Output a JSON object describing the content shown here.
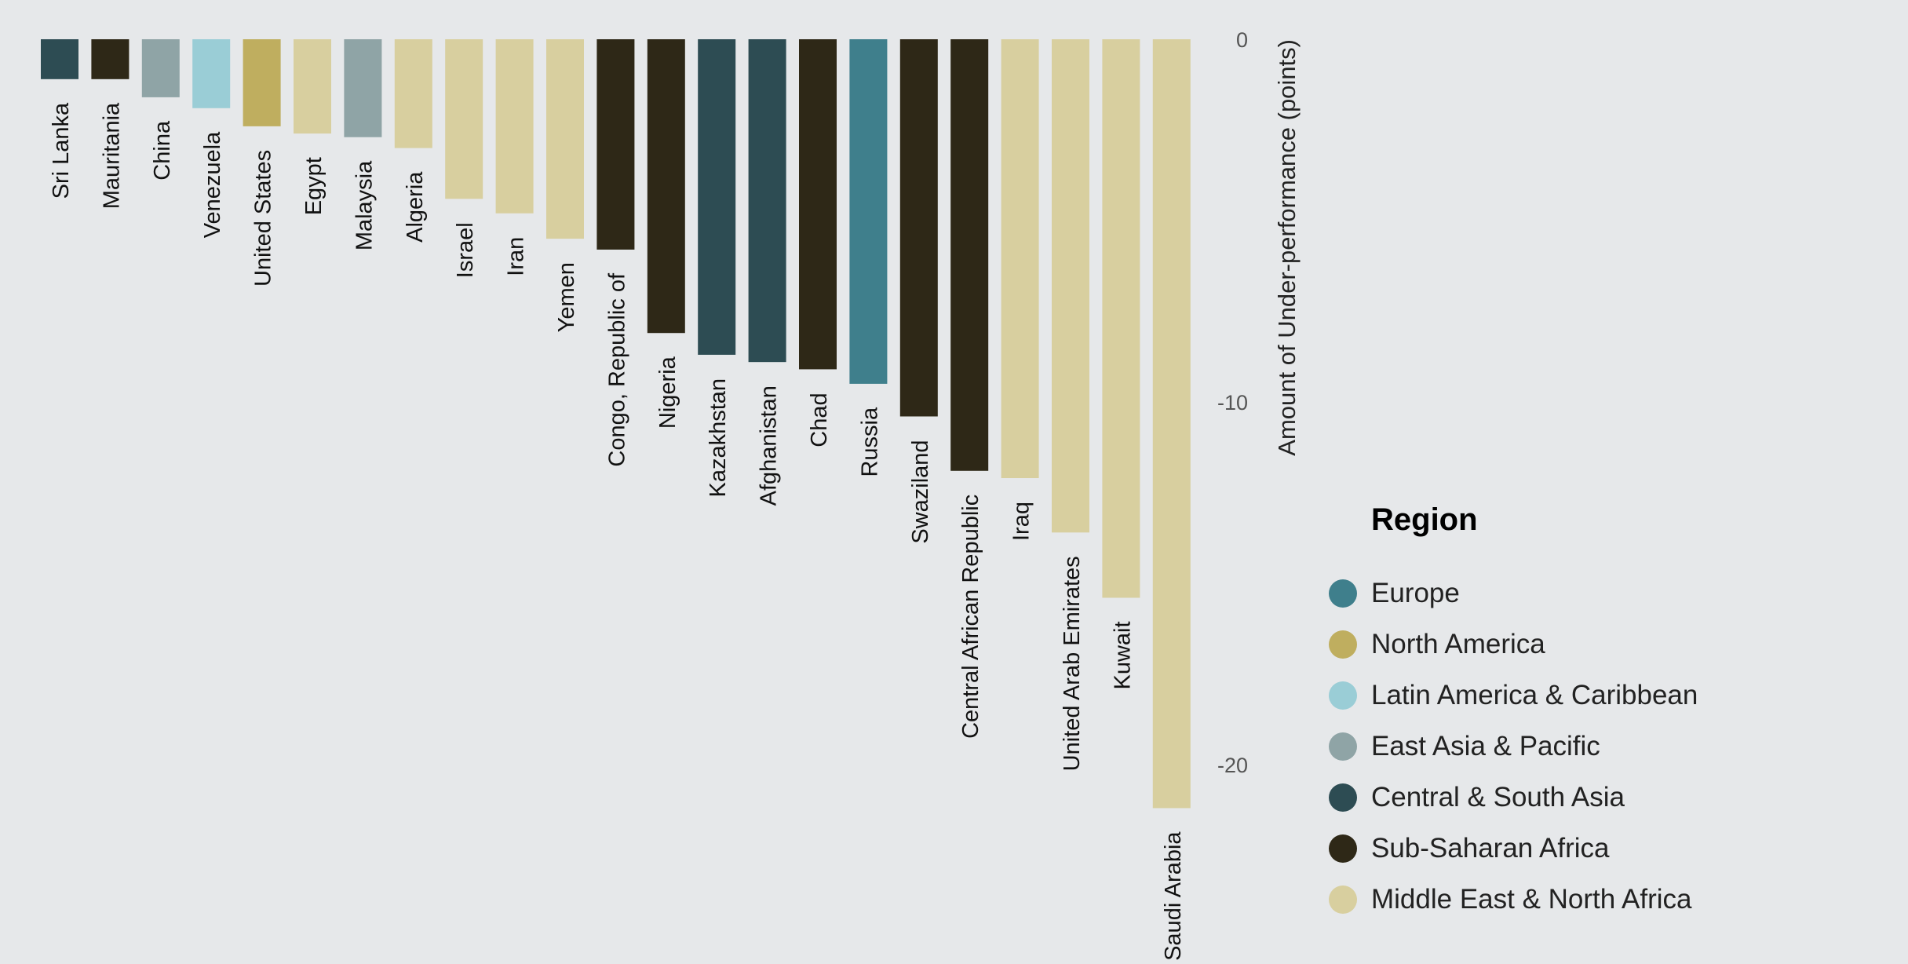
{
  "chart_data": {
    "type": "bar",
    "orientation": "vertical-downward",
    "ylabel": "Amount of Under-performance (points)",
    "ylim": [
      -22,
      0
    ],
    "yticks": [
      0,
      -10,
      -20
    ],
    "ytick_labels": [
      "0",
      "-10",
      "-20"
    ],
    "grid": false,
    "legend_position": "bottom-right",
    "categories": [
      "Sri Lanka",
      "Mauritania",
      "China",
      "Venezuela",
      "United States",
      "Egypt",
      "Malaysia",
      "Algeria",
      "Israel",
      "Iran",
      "Yemen",
      "Congo, Republic of",
      "Nigeria",
      "Kazakhstan",
      "Afghanistan",
      "Chad",
      "Russia",
      "Swaziland",
      "Central African Republic",
      "Iraq",
      "United Arab Emirates",
      "Kuwait",
      "Saudi Arabia"
    ],
    "values": [
      -1.1,
      -1.1,
      -1.6,
      -1.9,
      -2.4,
      -2.6,
      -2.7,
      -3.0,
      -4.4,
      -4.8,
      -5.5,
      -5.8,
      -8.1,
      -8.7,
      -8.9,
      -9.1,
      -9.5,
      -10.4,
      -11.9,
      -12.1,
      -13.6,
      -15.4,
      -21.2
    ],
    "regions": [
      "Central & South Asia",
      "Sub-Saharan Africa",
      "East Asia & Pacific",
      "Latin America & Caribbean",
      "North America",
      "Middle East & North Africa",
      "East Asia & Pacific",
      "Middle East & North Africa",
      "Middle East & North Africa",
      "Middle East & North Africa",
      "Middle East & North Africa",
      "Sub-Saharan Africa",
      "Sub-Saharan Africa",
      "Central & South Asia",
      "Central & South Asia",
      "Sub-Saharan Africa",
      "Europe",
      "Sub-Saharan Africa",
      "Sub-Saharan Africa",
      "Middle East & North Africa",
      "Middle East & North Africa",
      "Middle East & North Africa",
      "Middle East & North Africa"
    ]
  },
  "legend": {
    "title": "Region",
    "items": [
      {
        "label": "Europe",
        "color": "#3f7f8c"
      },
      {
        "label": "North America",
        "color": "#bfae5f"
      },
      {
        "label": "Latin America & Caribbean",
        "color": "#9acdd6"
      },
      {
        "label": "East Asia & Pacific",
        "color": "#8fa4a6"
      },
      {
        "label": "Central & South Asia",
        "color": "#2d4c53"
      },
      {
        "label": "Sub-Saharan Africa",
        "color": "#2e2817"
      },
      {
        "label": "Middle East & North Africa",
        "color": "#d8cf9f"
      }
    ]
  }
}
